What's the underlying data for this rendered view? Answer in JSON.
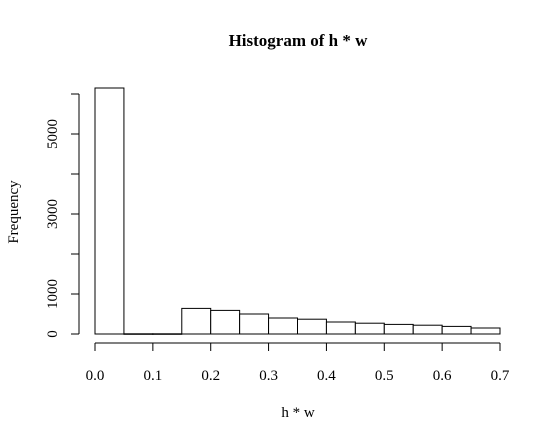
{
  "chart_data": {
    "type": "bar",
    "title": "Histogram of h * w",
    "xlabel": "h * w",
    "ylabel": "Frequency",
    "bins": [
      {
        "start": 0.0,
        "end": 0.05,
        "count": 6150
      },
      {
        "start": 0.05,
        "end": 0.1,
        "count": 5
      },
      {
        "start": 0.1,
        "end": 0.15,
        "count": 5
      },
      {
        "start": 0.15,
        "end": 0.2,
        "count": 640
      },
      {
        "start": 0.2,
        "end": 0.25,
        "count": 590
      },
      {
        "start": 0.25,
        "end": 0.3,
        "count": 500
      },
      {
        "start": 0.3,
        "end": 0.35,
        "count": 400
      },
      {
        "start": 0.35,
        "end": 0.4,
        "count": 370
      },
      {
        "start": 0.4,
        "end": 0.45,
        "count": 300
      },
      {
        "start": 0.45,
        "end": 0.5,
        "count": 270
      },
      {
        "start": 0.5,
        "end": 0.55,
        "count": 240
      },
      {
        "start": 0.55,
        "end": 0.6,
        "count": 220
      },
      {
        "start": 0.6,
        "end": 0.65,
        "count": 190
      },
      {
        "start": 0.65,
        "end": 0.7,
        "count": 150
      }
    ],
    "xlim": [
      0,
      0.7
    ],
    "ylim": [
      0,
      6150
    ],
    "xticks": [
      0.0,
      0.1,
      0.2,
      0.3,
      0.4,
      0.5,
      0.6,
      0.7
    ],
    "xtick_labels": [
      "0.0",
      "0.1",
      "0.2",
      "0.3",
      "0.4",
      "0.5",
      "0.6",
      "0.7"
    ],
    "yticks": [
      0,
      1000,
      2000,
      3000,
      4000,
      5000,
      6000
    ],
    "ytick_labels": [
      "0",
      "1000",
      "",
      "3000",
      "",
      "5000",
      ""
    ],
    "grid": false
  }
}
